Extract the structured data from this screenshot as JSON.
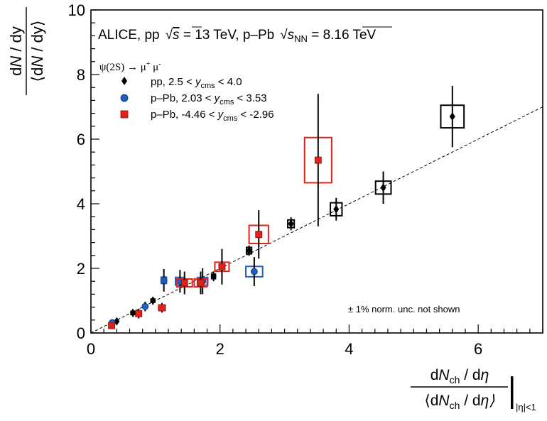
{
  "chart_data": {
    "type": "scatter",
    "title": "",
    "header": {
      "experiment": "ALICE, pp",
      "pp_energy": "s",
      "pp_energy_value": " = 13 TeV, p–Pb",
      "ppb_energy": "s",
      "ppb_energy_sub": "NN",
      "ppb_energy_value": " = 8.16 TeV"
    },
    "legend_header": "ψ(2S) → μ",
    "legend_header_sup1": "+",
    "legend_header_mid": " μ",
    "legend_header_sup2": "-",
    "note": "± 1% norm. unc. not shown",
    "xlabel": {
      "num_pre": "d",
      "num_n": "N",
      "num_sub": "ch",
      "num_post": " / d",
      "num_eta": "η",
      "den_pre": "⟨d",
      "den_n": "N",
      "den_sub": "ch",
      "den_post": " / d",
      "den_eta": "η⟩",
      "eval": "|η|<1"
    },
    "ylabel": {
      "num_pre": "d",
      "num_n": "N",
      "num_post": " / dy",
      "den_pre": "⟨d",
      "den_n": "N",
      "den_post": " / dy⟩"
    },
    "xlim": [
      0,
      7
    ],
    "ylim": [
      0,
      10
    ],
    "xticks": [
      0,
      2,
      4,
      6
    ],
    "yticks": [
      0,
      2,
      4,
      6,
      8,
      10
    ],
    "reference_line": {
      "slope": 1,
      "style": "dashed"
    },
    "legend_position": "top-left",
    "series": [
      {
        "name": "pp, 2.5 < ",
        "name_y": "y",
        "name_sub": "cms",
        "name_post": " < 4.0",
        "marker": "diamond",
        "color": "#000000",
        "points": [
          {
            "x": 0.4,
            "y": 0.36,
            "ey": 0.08,
            "bx": 0.02,
            "by": 0.03
          },
          {
            "x": 0.65,
            "y": 0.62,
            "ey": 0.12,
            "bx": 0.03,
            "by": 0.05
          },
          {
            "x": 0.96,
            "y": 1.0,
            "ey": 0.12,
            "bx": 0.03,
            "by": 0.05
          },
          {
            "x": 1.9,
            "y": 1.75,
            "ey": 0.15,
            "bx": 0.03,
            "by": 0.07
          },
          {
            "x": 2.45,
            "y": 2.55,
            "ey": 0.16,
            "bx": 0.04,
            "by": 0.1
          },
          {
            "x": 3.1,
            "y": 3.38,
            "ey": 0.2,
            "bx": 0.05,
            "by": 0.12
          },
          {
            "x": 3.8,
            "y": 3.83,
            "ey": 0.35,
            "bx": 0.09,
            "by": 0.2
          },
          {
            "x": 4.53,
            "y": 4.5,
            "ey": 0.5,
            "bx": 0.12,
            "by": 0.2
          },
          {
            "x": 5.6,
            "y": 6.7,
            "ey": 0.95,
            "bx": 0.18,
            "by": 0.35
          }
        ]
      },
      {
        "name": "p–Pb, 2.03 < ",
        "name_y": "y",
        "name_sub": "cms",
        "name_post": " < 3.53",
        "marker": "circle",
        "color": "#1f5fbf",
        "points": [
          {
            "x": 0.33,
            "y": 0.32,
            "ey": 0.08,
            "bx": 0.02,
            "by": 0.03
          },
          {
            "x": 0.84,
            "y": 0.82,
            "ey": 0.15,
            "bx": 0.03,
            "by": 0.05
          },
          {
            "x": 1.13,
            "y": 1.63,
            "ey": 0.35,
            "bx": 0.04,
            "by": 0.1
          },
          {
            "x": 1.38,
            "y": 1.6,
            "ey": 0.35,
            "bx": 0.07,
            "by": 0.12
          },
          {
            "x": 1.73,
            "y": 1.6,
            "ey": 0.4,
            "bx": 0.08,
            "by": 0.12
          },
          {
            "x": 2.53,
            "y": 1.9,
            "ey": 0.45,
            "bx": 0.13,
            "by": 0.16
          }
        ]
      },
      {
        "name": "p–Pb, -4.46 < ",
        "name_y": "y",
        "name_sub": "cms",
        "name_post": " < -2.96",
        "marker": "square",
        "color": "#e32119",
        "points": [
          {
            "x": 0.32,
            "y": 0.23,
            "ey": 0.08,
            "bx": 0.02,
            "by": 0.03
          },
          {
            "x": 0.74,
            "y": 0.6,
            "ey": 0.15,
            "bx": 0.04,
            "by": 0.05
          },
          {
            "x": 1.1,
            "y": 0.78,
            "ey": 0.15,
            "bx": 0.05,
            "by": 0.08
          },
          {
            "x": 1.45,
            "y": 1.55,
            "ey": 0.35,
            "bx": 0.12,
            "by": 0.12
          },
          {
            "x": 1.7,
            "y": 1.55,
            "ey": 0.35,
            "bx": 0.1,
            "by": 0.12
          },
          {
            "x": 2.03,
            "y": 2.05,
            "ey": 0.55,
            "bx": 0.11,
            "by": 0.14
          },
          {
            "x": 2.6,
            "y": 3.05,
            "ey": 0.75,
            "bx": 0.15,
            "by": 0.28
          },
          {
            "x": 3.52,
            "y": 5.35,
            "ey": 2.05,
            "bx": 0.21,
            "by": 0.7
          }
        ]
      }
    ]
  }
}
